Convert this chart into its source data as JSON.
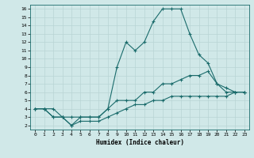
{
  "xlabel": "Humidex (Indice chaleur)",
  "bg_color": "#d0e8e8",
  "grid_color": "#b8d4d4",
  "line_color": "#1a6b6b",
  "x_values": [
    0,
    1,
    2,
    3,
    4,
    5,
    6,
    7,
    8,
    9,
    10,
    11,
    12,
    13,
    14,
    15,
    16,
    17,
    18,
    19,
    20,
    21,
    22,
    23
  ],
  "line1": [
    4,
    4,
    4,
    3,
    2,
    3,
    3,
    3,
    4,
    9,
    12,
    11,
    12,
    14.5,
    16,
    16,
    16,
    13,
    10.5,
    9.5,
    7,
    6,
    6,
    6
  ],
  "line2": [
    4,
    4,
    3,
    3,
    3,
    3,
    3,
    3,
    4,
    5,
    5,
    5,
    6,
    6,
    7,
    7,
    7.5,
    8,
    8,
    8.5,
    7,
    6.5,
    6,
    6
  ],
  "line3": [
    4,
    4,
    3,
    3,
    2,
    2.5,
    2.5,
    2.5,
    3,
    3.5,
    4,
    4.5,
    4.5,
    5,
    5,
    5.5,
    5.5,
    5.5,
    5.5,
    5.5,
    5.5,
    5.5,
    6,
    6
  ],
  "xlim": [
    -0.5,
    23.5
  ],
  "ylim": [
    1.5,
    16.5
  ],
  "yticks": [
    2,
    3,
    4,
    5,
    6,
    7,
    8,
    9,
    10,
    11,
    12,
    13,
    14,
    15,
    16
  ],
  "xticks": [
    0,
    1,
    2,
    3,
    4,
    5,
    6,
    7,
    8,
    9,
    10,
    11,
    12,
    13,
    14,
    15,
    16,
    17,
    18,
    19,
    20,
    21,
    22,
    23
  ]
}
